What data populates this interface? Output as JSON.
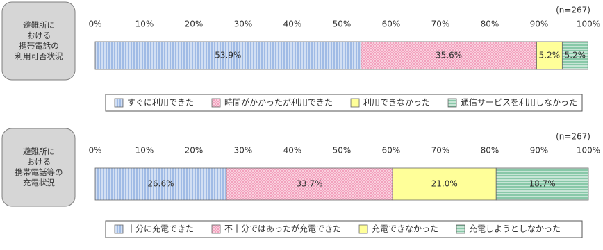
{
  "chart_data": [
    {
      "type": "stacked-bar",
      "row_label": [
        "避難所に",
        "おける",
        "携帯電話の",
        "利用可否状況"
      ],
      "note": "(n=267)",
      "xlim": [
        0,
        100
      ],
      "xticks": [
        {
          "value": 0,
          "label": "0%"
        },
        {
          "value": 10,
          "label": "10%"
        },
        {
          "value": 20,
          "label": "20%"
        },
        {
          "value": 30,
          "label": "30%"
        },
        {
          "value": 40,
          "label": "40%"
        },
        {
          "value": 50,
          "label": "50%"
        },
        {
          "value": 60,
          "label": "60%"
        },
        {
          "value": 70,
          "label": "70%"
        },
        {
          "value": 80,
          "label": "80%"
        },
        {
          "value": 90,
          "label": "90%"
        },
        {
          "value": 100,
          "label": "100%"
        }
      ],
      "series": [
        {
          "name": "すぐに利用できた",
          "color": "#7ea3dc",
          "pattern": "vertical-lines",
          "values": [
            53.9
          ],
          "value_labels": [
            "53.9%"
          ]
        },
        {
          "name": "時間がかかったが利用できた",
          "color": "#f08fb0",
          "pattern": "crosshatch",
          "values": [
            35.6
          ],
          "value_labels": [
            "35.6%"
          ]
        },
        {
          "name": "利用できなかった",
          "color": "#ffff99",
          "pattern": "solid",
          "values": [
            5.2
          ],
          "value_labels": [
            "5.2%"
          ]
        },
        {
          "name": "通信サービスを利用しなかった",
          "color": "#5fb58a",
          "pattern": "horizontal-lines",
          "values": [
            5.2
          ],
          "value_labels": [
            "5.2%"
          ]
        }
      ]
    },
    {
      "type": "stacked-bar",
      "row_label": [
        "避難所に",
        "おける",
        "携帯電話等の",
        "充電状況"
      ],
      "note": "(n=267)",
      "xlim": [
        0,
        100
      ],
      "xticks": [
        {
          "value": 0,
          "label": "0%"
        },
        {
          "value": 10,
          "label": "10%"
        },
        {
          "value": 20,
          "label": "20%"
        },
        {
          "value": 30,
          "label": "30%"
        },
        {
          "value": 40,
          "label": "40%"
        },
        {
          "value": 50,
          "label": "50%"
        },
        {
          "value": 60,
          "label": "60%"
        },
        {
          "value": 70,
          "label": "70%"
        },
        {
          "value": 80,
          "label": "80%"
        },
        {
          "value": 90,
          "label": "90%"
        },
        {
          "value": 100,
          "label": "100%"
        }
      ],
      "series": [
        {
          "name": "十分に充電できた",
          "color": "#7ea3dc",
          "pattern": "vertical-lines",
          "values": [
            26.6
          ],
          "value_labels": [
            "26.6%"
          ]
        },
        {
          "name": "不十分ではあったが充電できた",
          "color": "#f08fb0",
          "pattern": "crosshatch",
          "values": [
            33.7
          ],
          "value_labels": [
            "33.7%"
          ]
        },
        {
          "name": "充電できなかった",
          "color": "#ffff99",
          "pattern": "solid",
          "values": [
            21.0
          ],
          "value_labels": [
            "21.0%"
          ]
        },
        {
          "name": "充電しようとしなかった",
          "color": "#5fb58a",
          "pattern": "horizontal-lines",
          "values": [
            18.7
          ],
          "value_labels": [
            "18.7%"
          ]
        }
      ]
    }
  ]
}
